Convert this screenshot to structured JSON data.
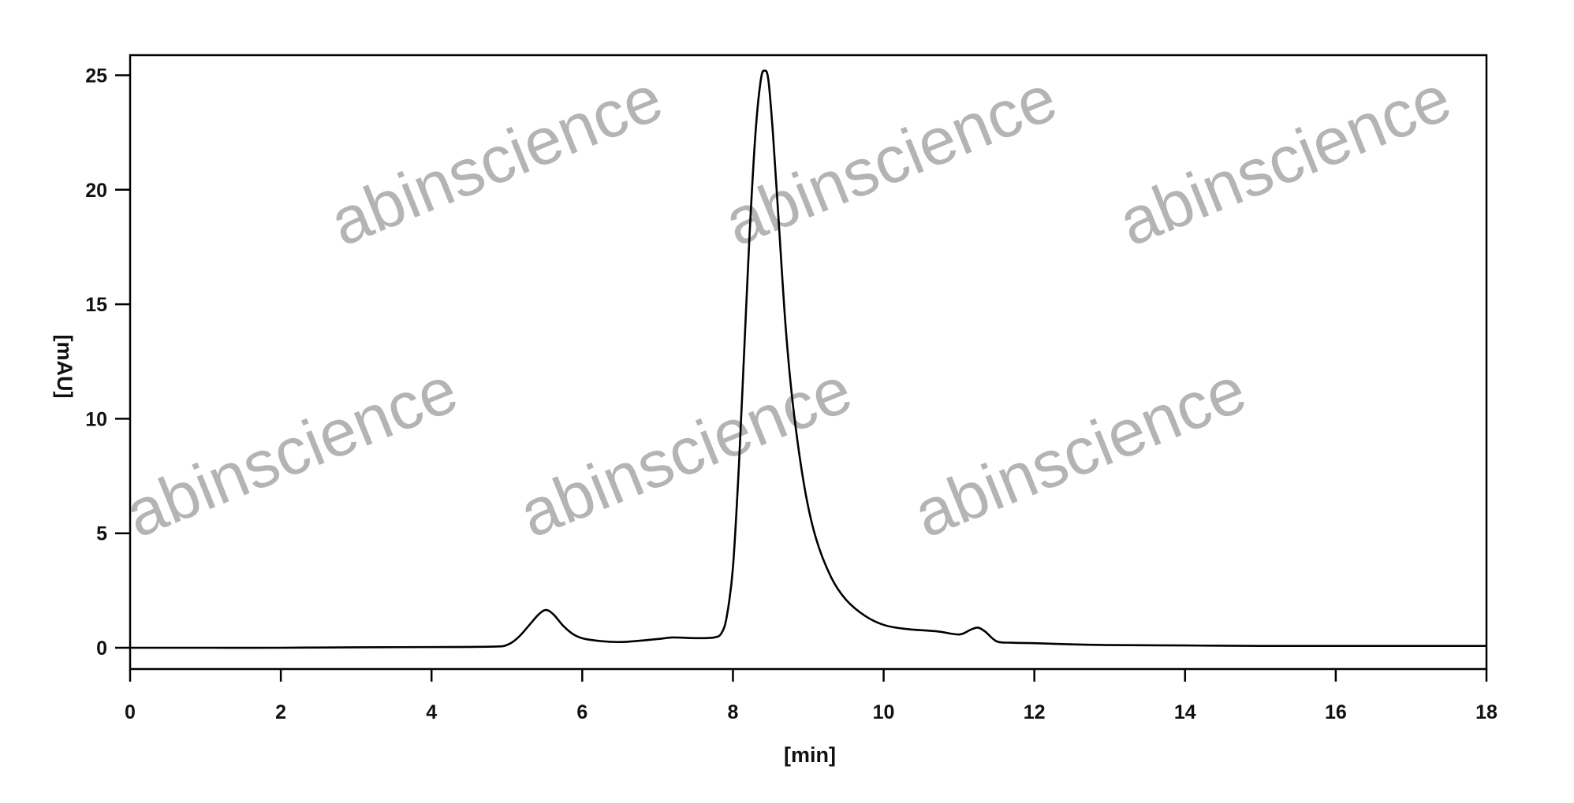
{
  "chart_data": {
    "type": "line",
    "title": "",
    "xlabel": "[min]",
    "ylabel": "[mAU]",
    "xlim": [
      0,
      18
    ],
    "ylim": [
      -0.9,
      26.2
    ],
    "x_ticks": [
      0,
      2,
      4,
      6,
      8,
      10,
      12,
      14,
      16,
      18
    ],
    "y_ticks": [
      0,
      5,
      10,
      15,
      20,
      25
    ],
    "grid": false,
    "legend": "none",
    "line_color": "#000000",
    "series": [
      {
        "x": [
          0,
          1,
          2,
          3,
          4,
          4.8,
          5.0,
          5.15,
          5.3,
          5.42,
          5.52,
          5.62,
          5.75,
          5.9,
          6.1,
          6.5,
          7.0,
          7.2,
          7.5,
          7.75,
          7.85,
          7.92,
          8.0,
          8.08,
          8.15,
          8.22,
          8.3,
          8.37,
          8.42,
          8.47,
          8.53,
          8.6,
          8.7,
          8.8,
          8.95,
          9.1,
          9.3,
          9.5,
          9.75,
          10.0,
          10.3,
          10.7,
          11.0,
          11.15,
          11.25,
          11.35,
          11.5,
          11.7,
          12.0,
          12.5,
          13.0,
          14.0,
          15.0,
          16.0,
          18.0
        ],
        "y": [
          0,
          0,
          0,
          0.02,
          0.03,
          0.05,
          0.12,
          0.45,
          1.0,
          1.45,
          1.65,
          1.45,
          0.95,
          0.55,
          0.35,
          0.25,
          0.38,
          0.45,
          0.42,
          0.45,
          0.65,
          1.4,
          3.5,
          8,
          13,
          18,
          22.5,
          24.8,
          25.2,
          24.8,
          22.5,
          19,
          14,
          10.5,
          7,
          4.8,
          3.1,
          2.1,
          1.4,
          1.0,
          0.82,
          0.72,
          0.58,
          0.78,
          0.88,
          0.7,
          0.28,
          0.22,
          0.2,
          0.15,
          0.12,
          0.1,
          0.08,
          0.08,
          0.08
        ]
      }
    ]
  },
  "watermark": "abinscience"
}
